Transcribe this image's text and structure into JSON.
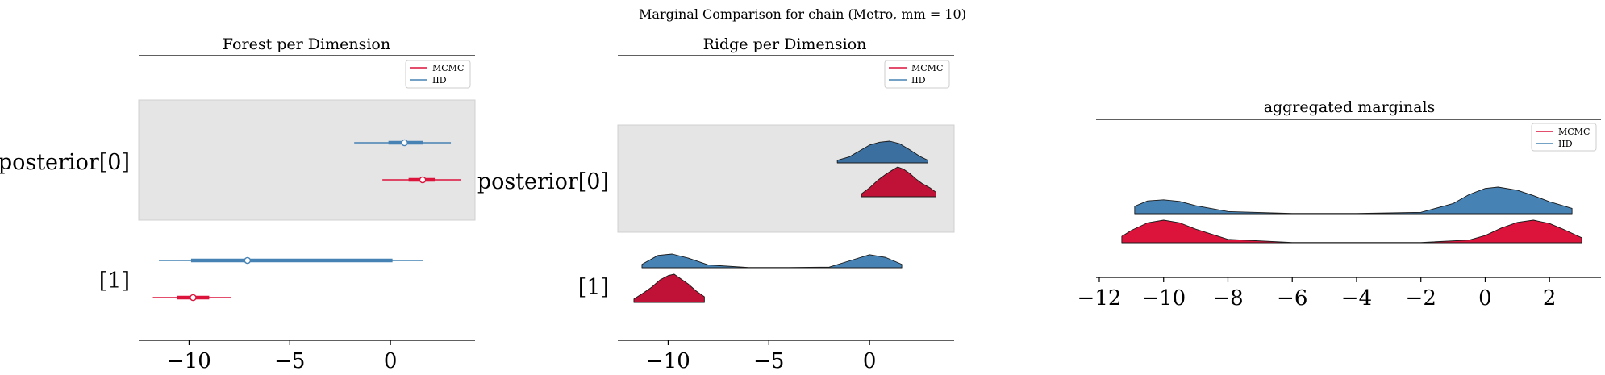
{
  "suptitle": "Marginal Comparison for chain (Metro, mm = 10)",
  "colors": {
    "mcmc": "#dc143c",
    "iid": "#4682b4",
    "iid_dark": "#3a6fa0",
    "mcmc_dark": "#c01236",
    "band": "#e5e5e5"
  },
  "chart_data": [
    {
      "type": "forest",
      "title": "Forest per Dimension",
      "xlim": [
        -12.5,
        4.2
      ],
      "xticks": [
        -10,
        -5,
        0
      ],
      "xtick_labels": [
        "−10",
        "−5",
        "0"
      ],
      "ylabels": [
        "posterior[0]",
        "[1]"
      ],
      "legend": {
        "position": "top-right",
        "entries": [
          "MCMC",
          "IID"
        ]
      },
      "series": [
        {
          "name": "IID",
          "dim": 0,
          "hdi": [
            -1.8,
            3.0
          ],
          "iqr": [
            -0.1,
            1.6
          ],
          "median": 0.7
        },
        {
          "name": "MCMC",
          "dim": 0,
          "hdi": [
            -0.4,
            3.5
          ],
          "iqr": [
            0.9,
            2.2
          ],
          "median": 1.6
        },
        {
          "name": "IID",
          "dim": 1,
          "hdi": [
            -11.5,
            1.6
          ],
          "iqr": [
            -9.9,
            0.1
          ],
          "median": -7.1
        },
        {
          "name": "MCMC",
          "dim": 1,
          "hdi": [
            -11.8,
            -7.9
          ],
          "iqr": [
            -10.6,
            -9.0
          ],
          "median": -9.8
        }
      ]
    },
    {
      "type": "ridge",
      "title": "Ridge per Dimension",
      "xlim": [
        -12.5,
        4.2
      ],
      "xticks": [
        -10,
        -5,
        0
      ],
      "xtick_labels": [
        "−10",
        "−5",
        "0"
      ],
      "ylabels": [
        "posterior[0]",
        "[1]"
      ],
      "legend": {
        "position": "top-right",
        "entries": [
          "MCMC",
          "IID"
        ]
      },
      "series": [
        {
          "name": "IID",
          "dim": 0,
          "x": [
            -1.6,
            -1.0,
            -0.5,
            0.0,
            0.5,
            1.0,
            1.5,
            2.0,
            2.5,
            2.9
          ],
          "density": [
            0.12,
            0.28,
            0.55,
            0.82,
            0.95,
            1.0,
            0.88,
            0.6,
            0.3,
            0.12
          ]
        },
        {
          "name": "MCMC",
          "dim": 0,
          "x": [
            -0.4,
            0.0,
            0.4,
            0.8,
            1.1,
            1.4,
            1.7,
            2.0,
            2.3,
            2.6,
            3.0,
            3.3
          ],
          "density": [
            0.1,
            0.3,
            0.55,
            0.75,
            0.88,
            1.0,
            0.92,
            0.78,
            0.6,
            0.45,
            0.3,
            0.15
          ]
        },
        {
          "name": "IID",
          "dim": 1,
          "x": [
            -11.3,
            -10.5,
            -9.8,
            -9.0,
            -8.0,
            -6.0,
            -4.0,
            -2.0,
            -1.0,
            0.0,
            0.8,
            1.6
          ],
          "density": [
            0.25,
            0.9,
            1.0,
            0.7,
            0.2,
            0.02,
            0.02,
            0.05,
            0.5,
            0.95,
            0.75,
            0.25
          ]
        },
        {
          "name": "MCMC",
          "dim": 1,
          "x": [
            -11.7,
            -11.2,
            -10.8,
            -10.4,
            -10.0,
            -9.7,
            -9.4,
            -9.0,
            -8.6,
            -8.2
          ],
          "density": [
            0.12,
            0.35,
            0.55,
            0.8,
            0.95,
            1.0,
            0.85,
            0.65,
            0.4,
            0.2
          ]
        }
      ]
    },
    {
      "type": "area",
      "title": "aggregated marginals",
      "xlim": [
        -12.1,
        3.6
      ],
      "xticks": [
        -12,
        -10,
        -8,
        -6,
        -4,
        -2,
        0,
        2
      ],
      "xtick_labels": [
        "−12",
        "−10",
        "−8",
        "−6",
        "−4",
        "−2",
        "0",
        "2"
      ],
      "legend": {
        "position": "top-right",
        "entries": [
          "MCMC",
          "IID"
        ]
      },
      "series": [
        {
          "name": "IID",
          "x": [
            -10.9,
            -10.5,
            -10.0,
            -9.5,
            -9.0,
            -8.0,
            -6.0,
            -4.0,
            -2.0,
            -1.0,
            -0.5,
            0.0,
            0.4,
            1.0,
            1.5,
            2.0,
            2.7
          ],
          "density": [
            0.28,
            0.48,
            0.52,
            0.46,
            0.3,
            0.08,
            0.01,
            0.01,
            0.05,
            0.38,
            0.72,
            0.95,
            1.0,
            0.88,
            0.68,
            0.45,
            0.2
          ]
        },
        {
          "name": "MCMC",
          "x": [
            -11.3,
            -11.0,
            -10.5,
            -10.0,
            -9.5,
            -9.0,
            -8.0,
            -6.0,
            -4.0,
            -2.0,
            -0.5,
            0.0,
            0.5,
            1.0,
            1.5,
            2.0,
            2.5,
            3.0
          ],
          "density": [
            0.28,
            0.55,
            0.88,
            1.0,
            0.88,
            0.6,
            0.15,
            0.01,
            0.01,
            0.01,
            0.12,
            0.32,
            0.65,
            0.9,
            1.0,
            0.85,
            0.55,
            0.22
          ]
        }
      ]
    }
  ]
}
